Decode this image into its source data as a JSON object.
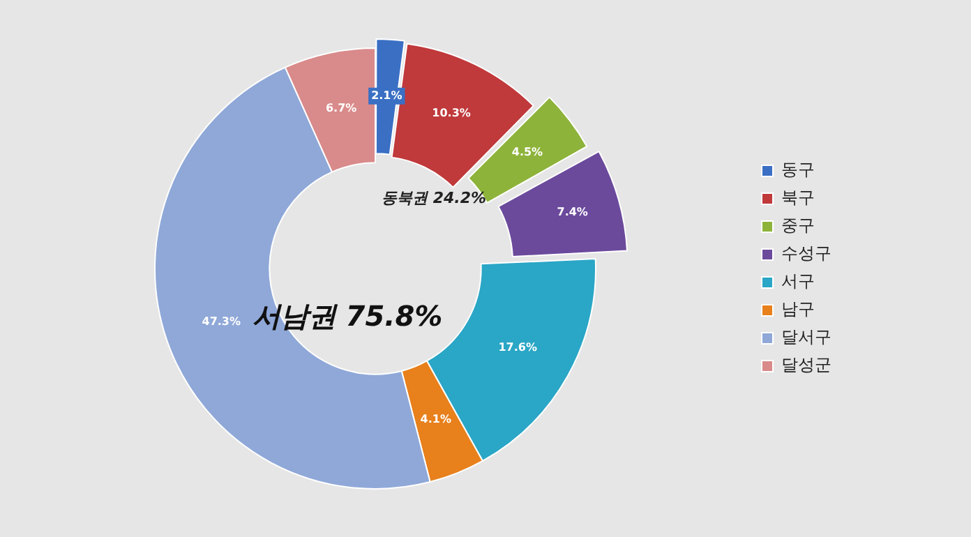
{
  "chart_data": {
    "type": "donut",
    "categories": [
      "동구",
      "북구",
      "중구",
      "수성구",
      "서구",
      "남구",
      "달서구",
      "달성군"
    ],
    "values": [
      2.1,
      10.3,
      4.5,
      7.4,
      17.6,
      4.1,
      47.3,
      6.7
    ],
    "colors": [
      "#3a6fc4",
      "#c0393b",
      "#8db33a",
      "#6b4a9c",
      "#2aa6c6",
      "#e8801c",
      "#8fa8d8",
      "#d98a8a"
    ],
    "value_labels": [
      "2.1%",
      "10.3%",
      "4.5%",
      "7.4%",
      "17.6%",
      "4.1%",
      "47.3%",
      "6.7%"
    ],
    "legend": "right",
    "annotations": [
      "동북권 24.2%",
      "서남권 75.8%"
    ]
  }
}
